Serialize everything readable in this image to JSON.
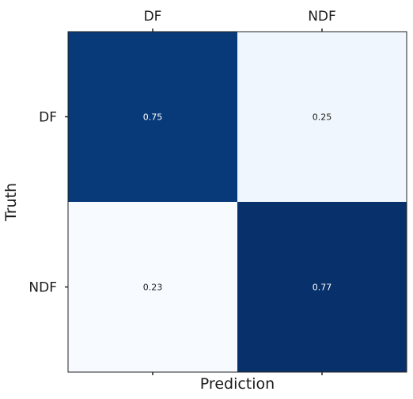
{
  "chart_data": {
    "type": "heatmap",
    "title": "",
    "xlabel": "Prediction",
    "ylabel": "Truth",
    "x_categories": [
      "DF",
      "NDF"
    ],
    "y_categories": [
      "DF",
      "NDF"
    ],
    "values": [
      [
        0.75,
        0.25
      ],
      [
        0.23,
        0.77
      ]
    ],
    "value_labels": [
      [
        "0.75",
        "0.25"
      ],
      [
        "0.23",
        "0.77"
      ]
    ],
    "x_ticks_position": "top",
    "colormap": "Blues",
    "colors": {
      "low": "#f7fbff",
      "high": "#08306b",
      "label_dark": "#1a1a1a",
      "label_light": "#ffffff"
    },
    "vrange": [
      0,
      1
    ],
    "grid": false,
    "legend": "none"
  }
}
